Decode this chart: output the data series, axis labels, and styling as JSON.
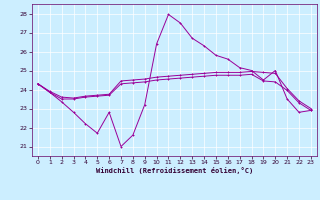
{
  "xlabel": "Windchill (Refroidissement éolien,°C)",
  "background_color": "#cceeff",
  "grid_color": "#ffffff",
  "line_color": "#990099",
  "xlim": [
    -0.5,
    23.5
  ],
  "ylim": [
    20.5,
    28.5
  ],
  "yticks": [
    21,
    22,
    23,
    24,
    25,
    26,
    27,
    28
  ],
  "xticks": [
    0,
    1,
    2,
    3,
    4,
    5,
    6,
    7,
    8,
    9,
    10,
    11,
    12,
    13,
    14,
    15,
    16,
    17,
    18,
    19,
    20,
    21,
    22,
    23
  ],
  "series": {
    "line1_x": [
      0,
      1,
      2,
      3,
      4,
      5,
      6,
      7,
      8,
      9,
      10,
      11,
      12,
      13,
      14,
      15,
      16,
      17,
      18,
      19,
      20,
      21,
      22,
      23
    ],
    "line1_y": [
      24.3,
      23.85,
      23.5,
      23.5,
      23.6,
      23.65,
      23.7,
      24.3,
      24.35,
      24.4,
      24.5,
      24.55,
      24.6,
      24.65,
      24.7,
      24.75,
      24.75,
      24.75,
      24.8,
      24.45,
      24.4,
      23.95,
      23.3,
      22.9
    ],
    "line2_x": [
      0,
      1,
      2,
      3,
      4,
      5,
      6,
      7,
      8,
      9,
      10,
      11,
      12,
      13,
      14,
      15,
      16,
      17,
      18,
      19,
      20,
      21,
      22,
      23
    ],
    "line2_y": [
      24.3,
      23.9,
      23.6,
      23.55,
      23.65,
      23.7,
      23.75,
      24.45,
      24.5,
      24.55,
      24.65,
      24.7,
      24.75,
      24.8,
      24.85,
      24.9,
      24.9,
      24.9,
      24.95,
      24.9,
      24.85,
      24.05,
      23.4,
      23.0
    ],
    "line3_x": [
      0,
      1,
      2,
      3,
      4,
      5,
      6,
      7,
      8,
      9,
      10,
      11,
      12,
      13,
      14,
      15,
      16,
      17,
      18,
      19,
      20,
      21,
      22,
      23
    ],
    "line3_y": [
      24.3,
      23.85,
      23.35,
      22.8,
      22.2,
      21.7,
      22.8,
      21.0,
      21.6,
      23.2,
      26.4,
      27.95,
      27.5,
      26.7,
      26.3,
      25.8,
      25.6,
      25.15,
      25.0,
      24.5,
      25.0,
      23.5,
      22.8,
      22.9
    ]
  }
}
